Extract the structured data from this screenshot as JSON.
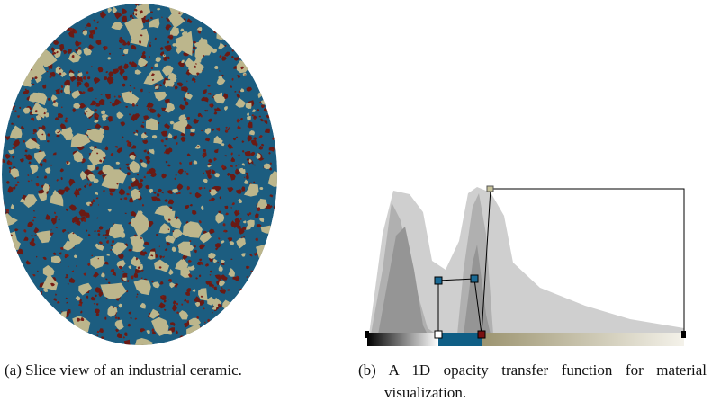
{
  "captions": {
    "a": "(a) Slice view of an industrial ceramic.",
    "b": "(b) A 1D opacity transfer function for material visualization."
  }
}
